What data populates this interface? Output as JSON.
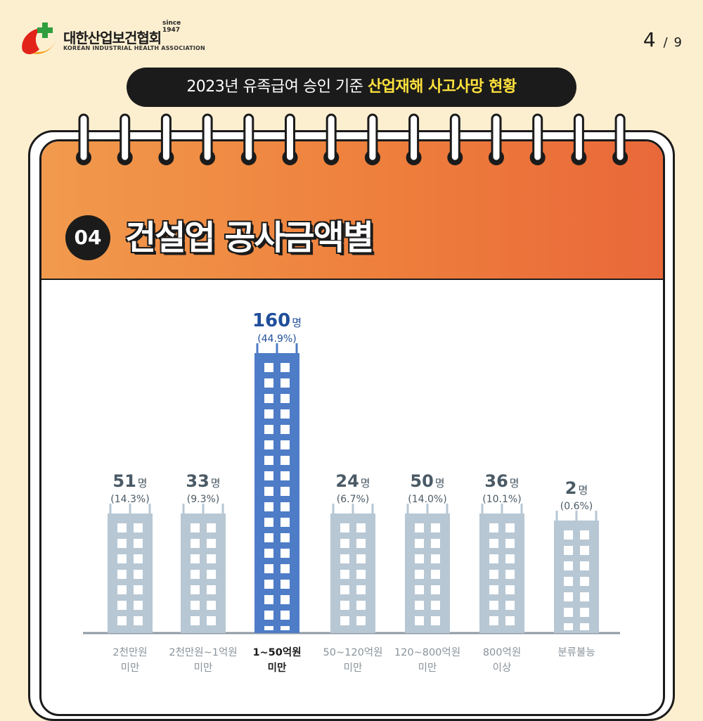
{
  "header": {
    "logo_name_kr": "대한산업보건협회",
    "logo_name_en": "KOREAN INDUSTRIAL HEALTH ASSOCIATION",
    "logo_since": "since 1947",
    "page_current": "4",
    "page_separator": "/",
    "page_total": "9"
  },
  "banner": {
    "prefix": "2023년 유족급여 승인 기준 ",
    "highlight": "산업재해 사고사망 현황"
  },
  "section": {
    "number": "04",
    "title": "건설업 공사금액별"
  },
  "colors": {
    "accent_bar": "#4e7cc6",
    "accent_label": "#1f4e9a",
    "bar": "#b7c7d4",
    "label": "#4a5a66",
    "orange": "#ee7f3c"
  },
  "chart_data": {
    "type": "bar",
    "unit": "명",
    "categories": [
      "2천만원\n미만",
      "2천만원~1억원\n미만",
      "1~50억원\n미만",
      "50~120억원\n미만",
      "120~800억원\n미만",
      "800억원\n이상",
      "분류불능"
    ],
    "values": [
      51,
      33,
      160,
      24,
      50,
      36,
      2
    ],
    "percent_labels": [
      "(14.3%)",
      "(9.3%)",
      "(44.9%)",
      "(6.7%)",
      "(14.0%)",
      "(10.1%)",
      "(0.6%)"
    ],
    "highlight_index": 2,
    "ylim": [
      0,
      160
    ]
  }
}
